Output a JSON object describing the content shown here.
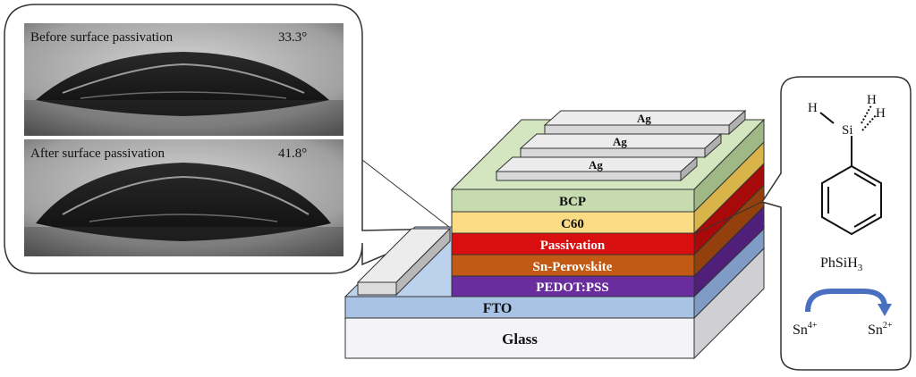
{
  "contact_angle": {
    "before": {
      "caption": "Before surface passivation",
      "angle": "33.3°"
    },
    "after": {
      "caption": "After surface passivation",
      "angle": "41.8°"
    }
  },
  "stack": {
    "electrodes": [
      "Ag",
      "Ag",
      "Ag"
    ],
    "layers": {
      "bcp": "BCP",
      "c60": "C60",
      "passivation": "Passivation",
      "perovskite": "Sn-Perovskite",
      "pedot": "PEDOT:PSS",
      "fto": "FTO",
      "glass": "Glass"
    }
  },
  "molecule": {
    "atoms": {
      "si": "Si",
      "h": "H"
    },
    "name_base": "PhSiH",
    "name_sub": "3",
    "reaction": {
      "from_base": "Sn",
      "from_sup": "4+",
      "to_base": "Sn",
      "to_sup": "2+"
    }
  },
  "colors": {
    "bcp": "#c6dcb0",
    "c60": "#fbdc84",
    "passivation": "#d90f0f",
    "perovskite": "#c15a14",
    "pedot": "#6a2d9d",
    "fto": "#a8c3e4",
    "glass": "#f4f4f8",
    "arrow": "#4a6fc0"
  }
}
